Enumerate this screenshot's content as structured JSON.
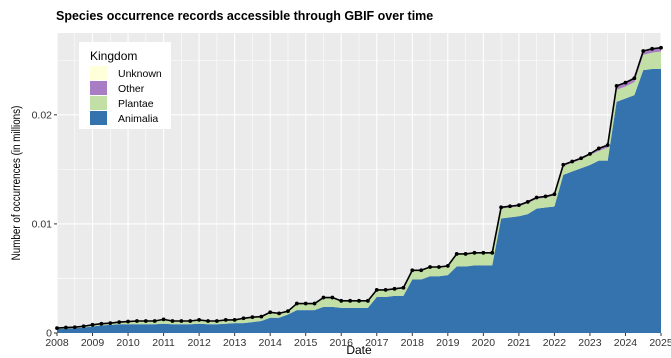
{
  "chart_data": {
    "type": "area",
    "title": "Species occurrence records accessible through GBIF over time",
    "xlabel": "Date",
    "ylabel": "Number of occurrences (in millions)",
    "xlim": [
      2008.0,
      2025.0
    ],
    "ylim": [
      0,
      0.0275
    ],
    "x_ticks": [
      2008,
      2009,
      2010,
      2011,
      2012,
      2013,
      2014,
      2015,
      2016,
      2017,
      2018,
      2019,
      2020,
      2021,
      2022,
      2023,
      2024,
      2025
    ],
    "y_ticks": [
      0,
      0.01,
      0.02
    ],
    "y_tick_labels": [
      "0",
      "0.01",
      "0.02"
    ],
    "grid": true,
    "legend": {
      "title": "Kingdom",
      "position": "top-left",
      "order": [
        "Unknown",
        "Other",
        "Plantae",
        "Animalia"
      ]
    },
    "x": [
      2008.0,
      2008.25,
      2008.5,
      2008.75,
      2009.0,
      2009.25,
      2009.5,
      2009.75,
      2010.0,
      2010.25,
      2010.5,
      2010.75,
      2011.0,
      2011.25,
      2011.5,
      2011.75,
      2012.0,
      2012.25,
      2012.5,
      2012.75,
      2013.0,
      2013.25,
      2013.5,
      2013.75,
      2014.0,
      2014.25,
      2014.5,
      2014.75,
      2015.0,
      2015.25,
      2015.5,
      2015.75,
      2016.0,
      2016.25,
      2016.5,
      2016.75,
      2017.0,
      2017.25,
      2017.5,
      2017.75,
      2018.0,
      2018.25,
      2018.5,
      2018.75,
      2019.0,
      2019.25,
      2019.5,
      2019.75,
      2020.0,
      2020.25,
      2020.5,
      2020.75,
      2021.0,
      2021.25,
      2021.5,
      2021.75,
      2022.0,
      2022.25,
      2022.5,
      2022.75,
      2023.0,
      2023.25,
      2023.5,
      2023.75,
      2024.0,
      2024.25,
      2024.5,
      2024.75,
      2025.0
    ],
    "series": [
      {
        "name": "Animalia",
        "color": "#3573ae",
        "values": [
          0.00035,
          0.0004,
          0.00043,
          0.0005,
          0.0006,
          0.0007,
          0.00075,
          0.0008,
          0.0008,
          0.0008,
          0.0008,
          0.0008,
          0.00085,
          0.0008,
          0.0008,
          0.0008,
          0.00085,
          0.0008,
          0.0008,
          0.00085,
          0.0009,
          0.0009,
          0.001,
          0.0011,
          0.0014,
          0.0014,
          0.0017,
          0.0021,
          0.0021,
          0.0021,
          0.0024,
          0.0024,
          0.0023,
          0.0023,
          0.0023,
          0.0023,
          0.0033,
          0.0033,
          0.0034,
          0.0034,
          0.0049,
          0.0049,
          0.0052,
          0.0052,
          0.0053,
          0.0061,
          0.0061,
          0.0062,
          0.0062,
          0.0062,
          0.0105,
          0.0106,
          0.0107,
          0.0109,
          0.0114,
          0.0115,
          0.0116,
          0.0145,
          0.0148,
          0.0151,
          0.0154,
          0.0158,
          0.0158,
          0.0212,
          0.0215,
          0.0218,
          0.0241,
          0.0242,
          0.0242
        ]
      },
      {
        "name": "Plantae",
        "color": "#c2e0a6",
        "values": [
          0.0001,
          0.0001,
          0.0001,
          0.00012,
          0.00015,
          0.00015,
          0.00015,
          0.0002,
          0.00025,
          0.0003,
          0.0003,
          0.0003,
          0.0004,
          0.0003,
          0.0003,
          0.0003,
          0.00035,
          0.0003,
          0.0003,
          0.00035,
          0.0003,
          0.00045,
          0.00045,
          0.0004,
          0.0005,
          0.0004,
          0.0003,
          0.0006,
          0.0006,
          0.0006,
          0.0008,
          0.0008,
          0.0006,
          0.0006,
          0.0006,
          0.0006,
          0.0006,
          0.0006,
          0.0006,
          0.0007,
          0.0008,
          0.0008,
          0.0008,
          0.0008,
          0.0008,
          0.0011,
          0.0011,
          0.0011,
          0.0011,
          0.0011,
          0.0009,
          0.0009,
          0.0009,
          0.001,
          0.0009,
          0.0009,
          0.001,
          0.0008,
          0.0008,
          0.0008,
          0.0009,
          0.0009,
          0.0012,
          0.0011,
          0.0011,
          0.0012,
          0.0014,
          0.0015,
          0.0016
        ]
      },
      {
        "name": "Other",
        "color": "#a97dc4",
        "values": [
          0,
          0,
          0,
          0,
          0,
          0,
          0,
          0,
          0,
          0,
          0,
          0,
          0,
          0,
          0,
          0,
          0,
          0,
          0,
          0,
          0,
          0,
          0,
          0,
          0,
          0,
          0,
          0,
          0,
          0,
          5e-05,
          5e-05,
          5e-05,
          5e-05,
          5e-05,
          5e-05,
          5e-05,
          5e-05,
          5e-05,
          5e-05,
          5e-05,
          5e-05,
          5e-05,
          5e-05,
          5e-05,
          5e-05,
          5e-05,
          5e-05,
          5e-05,
          5e-05,
          0.0001,
          0.0001,
          0.0001,
          0.0001,
          0.0001,
          0.0001,
          0.0001,
          0.0001,
          0.0001,
          0.0001,
          0.0001,
          0.0002,
          0.0002,
          0.0003,
          0.0003,
          0.0003,
          0.0003,
          0.0003,
          0.0003
        ]
      },
      {
        "name": "Unknown",
        "color": "#ffffd9",
        "values": [
          0,
          0,
          0,
          0,
          0,
          0,
          0,
          0,
          0,
          0,
          0,
          0,
          0,
          0,
          0,
          0,
          0,
          0,
          0,
          0,
          0,
          0,
          0,
          0,
          0,
          0,
          0,
          0,
          0,
          0,
          0,
          0,
          0,
          0,
          0,
          0,
          0,
          0,
          0,
          0,
          0,
          0,
          0,
          0,
          0,
          0,
          0,
          0,
          0,
          0,
          2e-05,
          2e-05,
          2e-05,
          2e-05,
          2e-05,
          2e-05,
          2e-05,
          2e-05,
          2e-05,
          2e-05,
          2e-05,
          2e-05,
          2e-05,
          5e-05,
          5e-05,
          5e-05,
          5e-05,
          5e-05,
          5e-05
        ]
      }
    ],
    "total_line_color": "#000000",
    "panel_color": "#ebebeb",
    "grid_color": "#ffffff"
  }
}
